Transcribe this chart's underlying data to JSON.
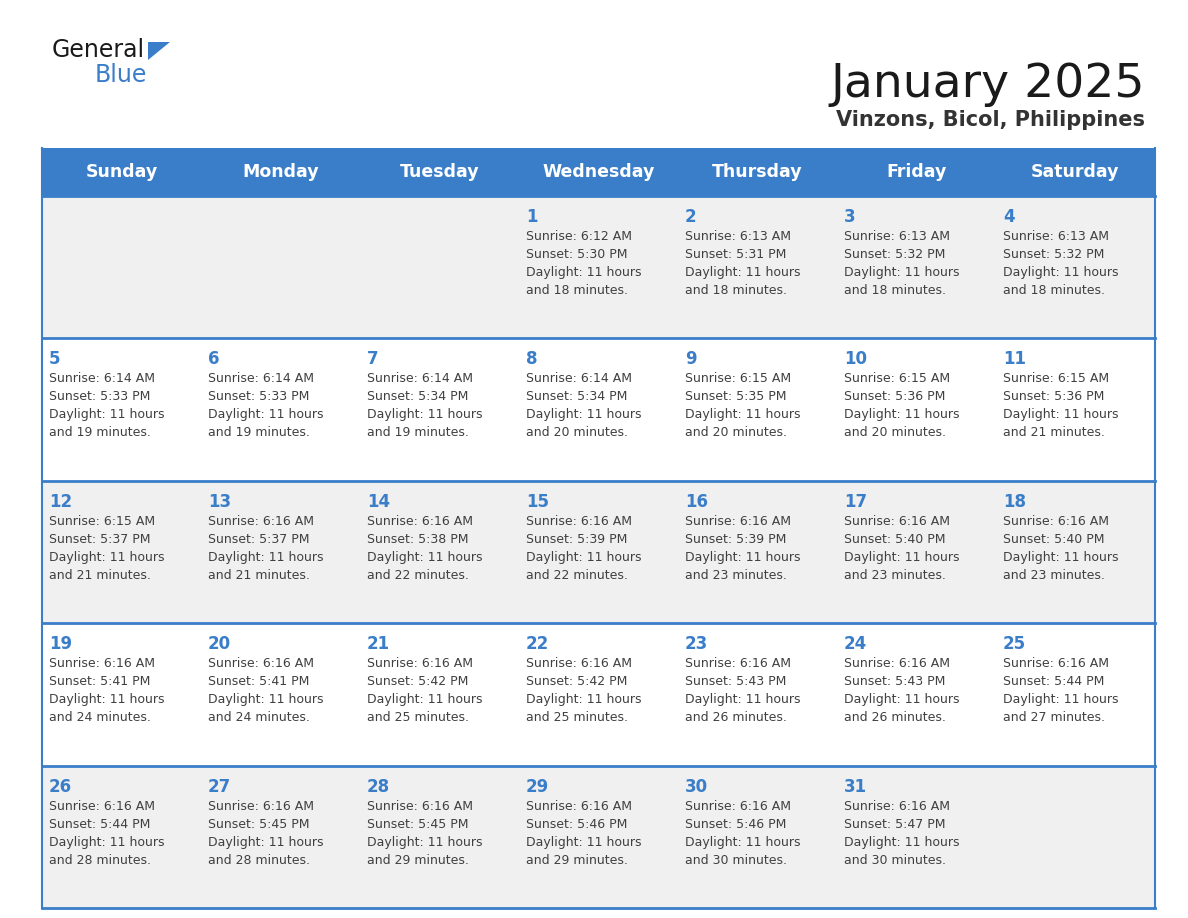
{
  "title": "January 2025",
  "subtitle": "Vinzons, Bicol, Philippines",
  "days_of_week": [
    "Sunday",
    "Monday",
    "Tuesday",
    "Wednesday",
    "Thursday",
    "Friday",
    "Saturday"
  ],
  "header_bg": "#3A7DC9",
  "header_text": "#FFFFFF",
  "cell_bg_light": "#F0F0F0",
  "cell_bg_white": "#FFFFFF",
  "separator_color": "#3A7DC9",
  "day_number_color": "#3A7DC9",
  "text_color": "#404040",
  "title_color": "#1A1A1A",
  "subtitle_color": "#333333",
  "logo_general_color": "#1A1A1A",
  "logo_blue_color": "#3A7DC9",
  "weeks": [
    {
      "bg": "#F0F0F0",
      "days": [
        {
          "day": null,
          "sunrise": null,
          "sunset": null,
          "daylight_line1": null,
          "daylight_line2": null
        },
        {
          "day": null,
          "sunrise": null,
          "sunset": null,
          "daylight_line1": null,
          "daylight_line2": null
        },
        {
          "day": null,
          "sunrise": null,
          "sunset": null,
          "daylight_line1": null,
          "daylight_line2": null
        },
        {
          "day": 1,
          "sunrise": "Sunrise: 6:12 AM",
          "sunset": "Sunset: 5:30 PM",
          "daylight_line1": "Daylight: 11 hours",
          "daylight_line2": "and 18 minutes."
        },
        {
          "day": 2,
          "sunrise": "Sunrise: 6:13 AM",
          "sunset": "Sunset: 5:31 PM",
          "daylight_line1": "Daylight: 11 hours",
          "daylight_line2": "and 18 minutes."
        },
        {
          "day": 3,
          "sunrise": "Sunrise: 6:13 AM",
          "sunset": "Sunset: 5:32 PM",
          "daylight_line1": "Daylight: 11 hours",
          "daylight_line2": "and 18 minutes."
        },
        {
          "day": 4,
          "sunrise": "Sunrise: 6:13 AM",
          "sunset": "Sunset: 5:32 PM",
          "daylight_line1": "Daylight: 11 hours",
          "daylight_line2": "and 18 minutes."
        }
      ]
    },
    {
      "bg": "#FFFFFF",
      "days": [
        {
          "day": 5,
          "sunrise": "Sunrise: 6:14 AM",
          "sunset": "Sunset: 5:33 PM",
          "daylight_line1": "Daylight: 11 hours",
          "daylight_line2": "and 19 minutes."
        },
        {
          "day": 6,
          "sunrise": "Sunrise: 6:14 AM",
          "sunset": "Sunset: 5:33 PM",
          "daylight_line1": "Daylight: 11 hours",
          "daylight_line2": "and 19 minutes."
        },
        {
          "day": 7,
          "sunrise": "Sunrise: 6:14 AM",
          "sunset": "Sunset: 5:34 PM",
          "daylight_line1": "Daylight: 11 hours",
          "daylight_line2": "and 19 minutes."
        },
        {
          "day": 8,
          "sunrise": "Sunrise: 6:14 AM",
          "sunset": "Sunset: 5:34 PM",
          "daylight_line1": "Daylight: 11 hours",
          "daylight_line2": "and 20 minutes."
        },
        {
          "day": 9,
          "sunrise": "Sunrise: 6:15 AM",
          "sunset": "Sunset: 5:35 PM",
          "daylight_line1": "Daylight: 11 hours",
          "daylight_line2": "and 20 minutes."
        },
        {
          "day": 10,
          "sunrise": "Sunrise: 6:15 AM",
          "sunset": "Sunset: 5:36 PM",
          "daylight_line1": "Daylight: 11 hours",
          "daylight_line2": "and 20 minutes."
        },
        {
          "day": 11,
          "sunrise": "Sunrise: 6:15 AM",
          "sunset": "Sunset: 5:36 PM",
          "daylight_line1": "Daylight: 11 hours",
          "daylight_line2": "and 21 minutes."
        }
      ]
    },
    {
      "bg": "#F0F0F0",
      "days": [
        {
          "day": 12,
          "sunrise": "Sunrise: 6:15 AM",
          "sunset": "Sunset: 5:37 PM",
          "daylight_line1": "Daylight: 11 hours",
          "daylight_line2": "and 21 minutes."
        },
        {
          "day": 13,
          "sunrise": "Sunrise: 6:16 AM",
          "sunset": "Sunset: 5:37 PM",
          "daylight_line1": "Daylight: 11 hours",
          "daylight_line2": "and 21 minutes."
        },
        {
          "day": 14,
          "sunrise": "Sunrise: 6:16 AM",
          "sunset": "Sunset: 5:38 PM",
          "daylight_line1": "Daylight: 11 hours",
          "daylight_line2": "and 22 minutes."
        },
        {
          "day": 15,
          "sunrise": "Sunrise: 6:16 AM",
          "sunset": "Sunset: 5:39 PM",
          "daylight_line1": "Daylight: 11 hours",
          "daylight_line2": "and 22 minutes."
        },
        {
          "day": 16,
          "sunrise": "Sunrise: 6:16 AM",
          "sunset": "Sunset: 5:39 PM",
          "daylight_line1": "Daylight: 11 hours",
          "daylight_line2": "and 23 minutes."
        },
        {
          "day": 17,
          "sunrise": "Sunrise: 6:16 AM",
          "sunset": "Sunset: 5:40 PM",
          "daylight_line1": "Daylight: 11 hours",
          "daylight_line2": "and 23 minutes."
        },
        {
          "day": 18,
          "sunrise": "Sunrise: 6:16 AM",
          "sunset": "Sunset: 5:40 PM",
          "daylight_line1": "Daylight: 11 hours",
          "daylight_line2": "and 23 minutes."
        }
      ]
    },
    {
      "bg": "#FFFFFF",
      "days": [
        {
          "day": 19,
          "sunrise": "Sunrise: 6:16 AM",
          "sunset": "Sunset: 5:41 PM",
          "daylight_line1": "Daylight: 11 hours",
          "daylight_line2": "and 24 minutes."
        },
        {
          "day": 20,
          "sunrise": "Sunrise: 6:16 AM",
          "sunset": "Sunset: 5:41 PM",
          "daylight_line1": "Daylight: 11 hours",
          "daylight_line2": "and 24 minutes."
        },
        {
          "day": 21,
          "sunrise": "Sunrise: 6:16 AM",
          "sunset": "Sunset: 5:42 PM",
          "daylight_line1": "Daylight: 11 hours",
          "daylight_line2": "and 25 minutes."
        },
        {
          "day": 22,
          "sunrise": "Sunrise: 6:16 AM",
          "sunset": "Sunset: 5:42 PM",
          "daylight_line1": "Daylight: 11 hours",
          "daylight_line2": "and 25 minutes."
        },
        {
          "day": 23,
          "sunrise": "Sunrise: 6:16 AM",
          "sunset": "Sunset: 5:43 PM",
          "daylight_line1": "Daylight: 11 hours",
          "daylight_line2": "and 26 minutes."
        },
        {
          "day": 24,
          "sunrise": "Sunrise: 6:16 AM",
          "sunset": "Sunset: 5:43 PM",
          "daylight_line1": "Daylight: 11 hours",
          "daylight_line2": "and 26 minutes."
        },
        {
          "day": 25,
          "sunrise": "Sunrise: 6:16 AM",
          "sunset": "Sunset: 5:44 PM",
          "daylight_line1": "Daylight: 11 hours",
          "daylight_line2": "and 27 minutes."
        }
      ]
    },
    {
      "bg": "#F0F0F0",
      "days": [
        {
          "day": 26,
          "sunrise": "Sunrise: 6:16 AM",
          "sunset": "Sunset: 5:44 PM",
          "daylight_line1": "Daylight: 11 hours",
          "daylight_line2": "and 28 minutes."
        },
        {
          "day": 27,
          "sunrise": "Sunrise: 6:16 AM",
          "sunset": "Sunset: 5:45 PM",
          "daylight_line1": "Daylight: 11 hours",
          "daylight_line2": "and 28 minutes."
        },
        {
          "day": 28,
          "sunrise": "Sunrise: 6:16 AM",
          "sunset": "Sunset: 5:45 PM",
          "daylight_line1": "Daylight: 11 hours",
          "daylight_line2": "and 29 minutes."
        },
        {
          "day": 29,
          "sunrise": "Sunrise: 6:16 AM",
          "sunset": "Sunset: 5:46 PM",
          "daylight_line1": "Daylight: 11 hours",
          "daylight_line2": "and 29 minutes."
        },
        {
          "day": 30,
          "sunrise": "Sunrise: 6:16 AM",
          "sunset": "Sunset: 5:46 PM",
          "daylight_line1": "Daylight: 11 hours",
          "daylight_line2": "and 30 minutes."
        },
        {
          "day": 31,
          "sunrise": "Sunrise: 6:16 AM",
          "sunset": "Sunset: 5:47 PM",
          "daylight_line1": "Daylight: 11 hours",
          "daylight_line2": "and 30 minutes."
        },
        {
          "day": null,
          "sunrise": null,
          "sunset": null,
          "daylight_line1": null,
          "daylight_line2": null
        }
      ]
    }
  ]
}
